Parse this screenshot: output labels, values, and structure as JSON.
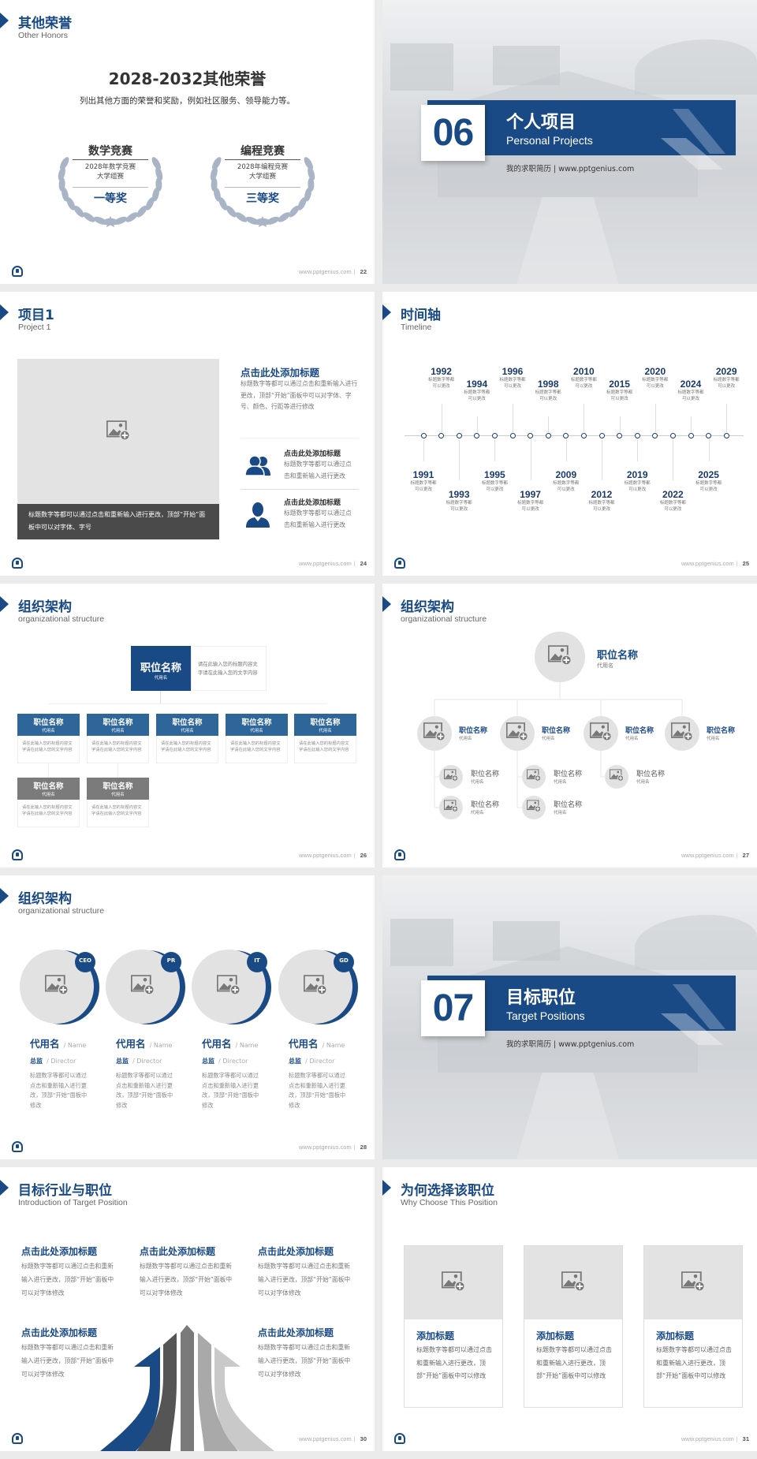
{
  "footer_url": "www.pptgenius.com",
  "colors": {
    "brand_blue": "#1a4a86",
    "mid_blue": "#2f6699",
    "gray_box": "#7b7b7b",
    "placeholder": "#e3e3e3",
    "laurel": "#a9b5c7"
  },
  "slides": {
    "honors": {
      "title": "其他荣誉",
      "subtitle": "Other Honors",
      "page": "22",
      "heading": "2028-2032其他荣誉",
      "description": "列出其他方面的荣誉和奖励，例如社区服务、领导能力等。",
      "awards": [
        {
          "name": "数学竞赛",
          "line1": "2028年数学竞赛",
          "line2": "大学组赛",
          "prize": "一等奖"
        },
        {
          "name": "编程竞赛",
          "line1": "2028年编程竞赛",
          "line2": "大学组赛",
          "prize": "三等奖"
        }
      ]
    },
    "section06": {
      "number": "06",
      "title": "个人项目",
      "subtitle": "Personal Projects",
      "tagline": "我的求职简历 | www.pptgenius.com"
    },
    "project1": {
      "title": "项目1",
      "subtitle": "Project 1",
      "page": "24",
      "caption": "标题数字等都可以通过点击和重新输入进行更改，顶部“开始”面板中可以对字体、字号",
      "main_heading": "点击此处添加标题",
      "main_text": "标题数字等都可以通过点击和重新输入进行更改，顶部“开始”面板中可以对字体、字号、颜色、行距等进行修改",
      "items": [
        {
          "icon": "users-icon",
          "heading": "点击此处添加标题",
          "text": "标题数字等都可以通过点击和重新输入进行更改"
        },
        {
          "icon": "user-icon",
          "heading": "点击此处添加标题",
          "text": "标题数字等都可以通过点击和重新输入进行更改"
        }
      ]
    },
    "timeline": {
      "title": "时间轴",
      "subtitle": "Timeline",
      "page": "25",
      "events": [
        {
          "year": "1991",
          "side": "bottom",
          "line1": "标题数字等都",
          "line2": "可以更改"
        },
        {
          "year": "1992",
          "side": "top",
          "line1": "标题数字等都",
          "line2": "可以更改"
        },
        {
          "year": "1993",
          "side": "bottom",
          "line1": "标题数字等都",
          "line2": "可以更改"
        },
        {
          "year": "1994",
          "side": "top",
          "line1": "标题数字等都",
          "line2": "可以更改"
        },
        {
          "year": "1995",
          "side": "bottom",
          "line1": "标题数字等都",
          "line2": "可以更改"
        },
        {
          "year": "1996",
          "side": "top",
          "line1": "标题数字等都",
          "line2": "可以更改"
        },
        {
          "year": "1997",
          "side": "bottom",
          "line1": "标题数字等都",
          "line2": "可以更改"
        },
        {
          "year": "1998",
          "side": "top",
          "line1": "标题数字等都",
          "line2": "可以更改"
        },
        {
          "year": "2009",
          "side": "bottom",
          "line1": "标题数字等都",
          "line2": "可以更改"
        },
        {
          "year": "2010",
          "side": "top",
          "line1": "标题数字等都",
          "line2": "可以更改"
        },
        {
          "year": "2012",
          "side": "bottom",
          "line1": "标题数字等都",
          "line2": "可以更改"
        },
        {
          "year": "2015",
          "side": "top",
          "line1": "标题数字等都",
          "line2": "可以更改"
        },
        {
          "year": "2019",
          "side": "bottom",
          "line1": "标题数字等都",
          "line2": "可以更改"
        },
        {
          "year": "2020",
          "side": "top",
          "line1": "标题数字等都",
          "line2": "可以更改"
        },
        {
          "year": "2022",
          "side": "bottom",
          "line1": "标题数字等都",
          "line2": "可以更改"
        },
        {
          "year": "2024",
          "side": "top",
          "line1": "标题数字等都",
          "line2": "可以更改"
        },
        {
          "year": "2025",
          "side": "bottom",
          "line1": "标题数字等都",
          "line2": "可以更改"
        },
        {
          "year": "2029",
          "side": "top",
          "line1": "标题数字等都",
          "line2": "可以更改"
        }
      ]
    },
    "org1": {
      "title": "组织架构",
      "subtitle": "organizational structure",
      "page": "26",
      "top": {
        "name": "职位名称",
        "alias": "代用名",
        "text": "请在此输入您的标题内容文字请在此输入您的文字内容"
      },
      "row1": [
        {
          "name": "职位名称",
          "alias": "代用名",
          "text": "请在此输入您的标题内容文字请在此输入您的文字内容"
        },
        {
          "name": "职位名称",
          "alias": "代用名",
          "text": "请在此输入您的标题内容文字请在此输入您的文字内容"
        },
        {
          "name": "职位名称",
          "alias": "代用名",
          "text": "请在此输入您的标题内容文字请在此输入您的文字内容"
        },
        {
          "name": "职位名称",
          "alias": "代用名",
          "text": "请在此输入您的标题内容文字请在此输入您的文字内容"
        },
        {
          "name": "职位名称",
          "alias": "代用名",
          "text": "请在此输入您的标题内容文字请在此输入您的文字内容"
        }
      ],
      "row2": [
        {
          "name": "职位名称",
          "alias": "代用名",
          "text": "请在此输入您的标题内容文字请在此输入您的文字内容"
        },
        {
          "name": "职位名称",
          "alias": "代用名",
          "text": "请在此输入您的标题内容文字请在此输入您的文字内容"
        }
      ]
    },
    "org2": {
      "title": "组织架构",
      "subtitle": "organizational structure",
      "page": "27",
      "top": {
        "name": "职位名称",
        "alias": "代用名"
      },
      "level2": [
        {
          "name": "职位名称",
          "alias": "代用名"
        },
        {
          "name": "职位名称",
          "alias": "代用名"
        },
        {
          "name": "职位名称",
          "alias": "代用名"
        },
        {
          "name": "职位名称",
          "alias": "代用名"
        }
      ],
      "level3": [
        {
          "name": "职位名称",
          "alias": "代用名"
        },
        {
          "name": "职位名称",
          "alias": "代用名"
        },
        {
          "name": "职位名称",
          "alias": "代用名"
        },
        {
          "name": "职位名称",
          "alias": "代用名"
        },
        {
          "name": "职位名称",
          "alias": "代用名"
        }
      ]
    },
    "org3": {
      "title": "组织架构",
      "subtitle": "organizational structure",
      "page": "28",
      "members": [
        {
          "badge": "CEO",
          "name": "代用名",
          "name_en": "/ Name",
          "role": "总监",
          "role_en": "/  Director",
          "text": "标题数字等都可以通过点击和重新输入进行更改，顶部“开始”面板中修改"
        },
        {
          "badge": "PR",
          "name": "代用名",
          "name_en": "/ Name",
          "role": "总监",
          "role_en": "/  Director",
          "text": "标题数字等都可以通过点击和重新输入进行更改，顶部“开始”面板中修改"
        },
        {
          "badge": "IT",
          "name": "代用名",
          "name_en": "/ Name",
          "role": "总监",
          "role_en": "/  Director",
          "text": "标题数字等都可以通过点击和重新输入进行更改，顶部“开始”面板中修改"
        },
        {
          "badge": "GD",
          "name": "代用名",
          "name_en": "/ Name",
          "role": "总监",
          "role_en": "/  Director",
          "text": "标题数字等都可以通过点击和重新输入进行更改，顶部“开始”面板中修改"
        }
      ]
    },
    "section07": {
      "number": "07",
      "title": "目标职位",
      "subtitle": "Target Positions",
      "tagline": "我的求职简历 | www.pptgenius.com"
    },
    "target": {
      "title": "目标行业与职位",
      "subtitle": "Introduction of Target Position",
      "page": "30",
      "blocks": [
        {
          "heading": "点击此处添加标题",
          "text": "标题数字等都可以通过点击和重新输入进行更改，顶部“开始”面板中可以对字体修改"
        },
        {
          "heading": "点击此处添加标题",
          "text": "标题数字等都可以通过点击和重新输入进行更改，顶部“开始”面板中可以对字体修改"
        },
        {
          "heading": "点击此处添加标题",
          "text": "标题数字等都可以通过点击和重新输入进行更改，顶部“开始”面板中可以对字体修改"
        },
        {
          "heading": "点击此处添加标题",
          "text": "标题数字等都可以通过点击和重新输入进行更改，顶部“开始”面板中可以对字体修改"
        },
        {
          "heading": "点击此处添加标题",
          "text": "标题数字等都可以通过点击和重新输入进行更改，顶部“开始”面板中可以对字体修改"
        }
      ]
    },
    "why": {
      "title": "为何选择该职位",
      "subtitle": "Why Choose This Position",
      "page": "31",
      "cards": [
        {
          "heading": "添加标题",
          "text": "标题数字等都可以通过点击和重新输入进行更改，顶部“开始”面板中可以修改"
        },
        {
          "heading": "添加标题",
          "text": "标题数字等都可以通过点击和重新输入进行更改，顶部“开始”面板中可以修改"
        },
        {
          "heading": "添加标题",
          "text": "标题数字等都可以通过点击和重新输入进行更改，顶部“开始”面板中可以修改"
        }
      ]
    }
  }
}
